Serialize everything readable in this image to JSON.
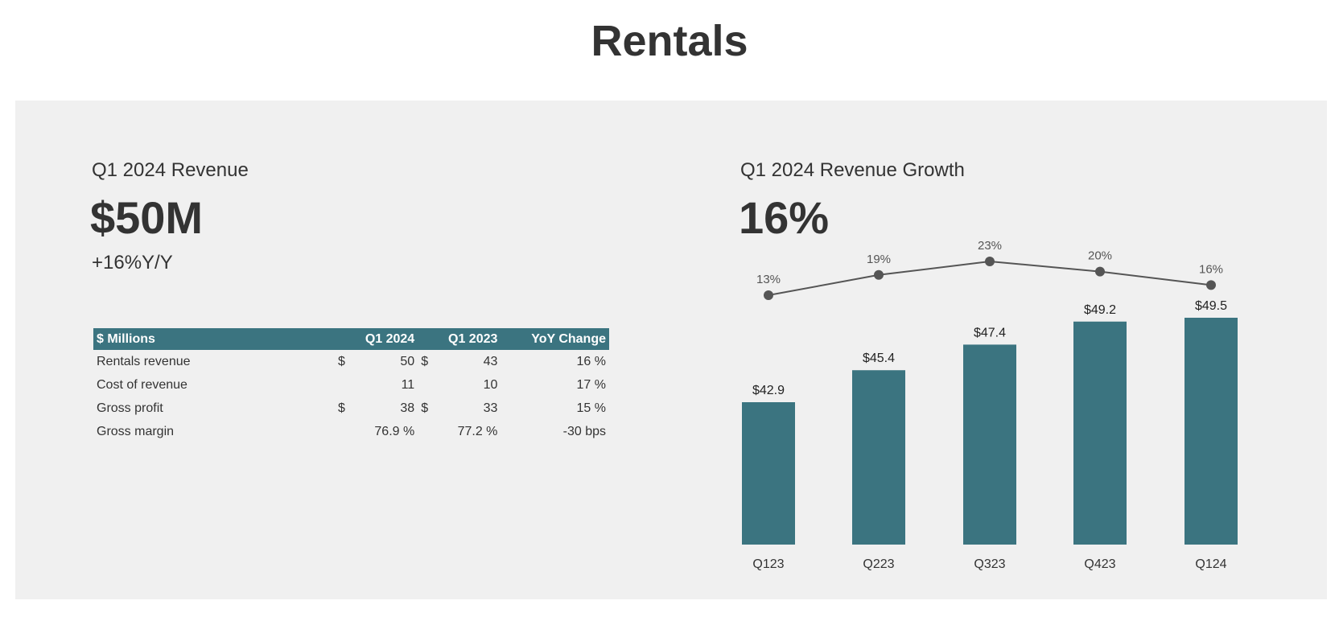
{
  "page": {
    "title": "Rentals"
  },
  "revenue": {
    "label": "Q1 2024 Revenue",
    "value": "$50M",
    "yoy": "+16%Y/Y"
  },
  "growth": {
    "label": "Q1 2024 Revenue Growth",
    "value": "16%"
  },
  "table": {
    "headers": [
      "$ Millions",
      "Q1 2024",
      "Q1 2023",
      "YoY Change"
    ],
    "rows": [
      {
        "label": "Rentals revenue",
        "cur1": "$",
        "q1_2024": "50",
        "cur2": "$",
        "q1_2023": "43",
        "yoy": "16 %"
      },
      {
        "label": "Cost of revenue",
        "cur1": "",
        "q1_2024": "11",
        "cur2": "",
        "q1_2023": "10",
        "yoy": "17 %"
      },
      {
        "label": "Gross profit",
        "cur1": "$",
        "q1_2024": "38",
        "cur2": "$",
        "q1_2023": "33",
        "yoy": "15 %"
      },
      {
        "label": "Gross margin",
        "cur1": "",
        "q1_2024": "76.9 %",
        "cur2": "",
        "q1_2023": "77.2 %",
        "yoy": "-30 bps"
      }
    ]
  },
  "chart_data": {
    "type": "bar",
    "categories": [
      "Q123",
      "Q223",
      "Q323",
      "Q423",
      "Q124"
    ],
    "series": [
      {
        "type": "bar",
        "values": [
          42.9,
          45.4,
          47.4,
          49.2,
          49.5
        ],
        "labels": [
          "$42.9",
          "$45.4",
          "$47.4",
          "$49.2",
          "$49.5"
        ]
      },
      {
        "type": "line",
        "values": [
          13,
          19,
          23,
          20,
          16
        ],
        "labels": [
          "13%",
          "19%",
          "23%",
          "20%",
          "16%"
        ]
      }
    ],
    "colors": {
      "bar": "#3b7480",
      "line": "#555555"
    }
  }
}
